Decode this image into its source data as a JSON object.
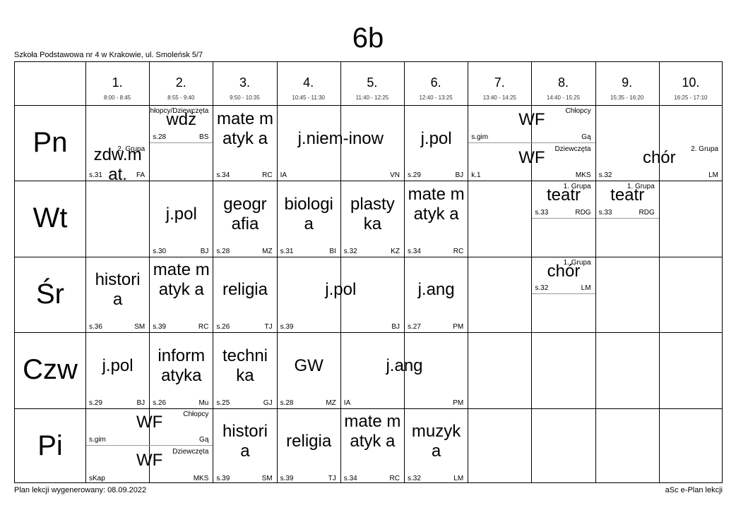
{
  "class_name": "6b",
  "school": "Szkoła Podstawowa nr 4 w Krakowie, ul. Smoleńsk 5/7",
  "footer": {
    "generated": "Plan lekcji wygenerowany: 08.09.2022",
    "software": "aSc e-Plan lekcji"
  },
  "periods": [
    {
      "num": "1.",
      "time": "8:00 - 8:45"
    },
    {
      "num": "2.",
      "time": "8:55 - 9:40"
    },
    {
      "num": "3.",
      "time": "9:50 - 10:35"
    },
    {
      "num": "4.",
      "time": "10:45 - 11:30"
    },
    {
      "num": "5.",
      "time": "11:40 - 12:25"
    },
    {
      "num": "6.",
      "time": "12:40 - 13:25"
    },
    {
      "num": "7.",
      "time": "13:40 - 14:25"
    },
    {
      "num": "8.",
      "time": "14:40 - 15:25"
    },
    {
      "num": "9.",
      "time": "15:35 - 16:20"
    },
    {
      "num": "10.",
      "time": "16:25 - 17:10"
    }
  ],
  "days": [
    "Pn",
    "Wt",
    "Śr",
    "Czw",
    "Pi"
  ],
  "lessons": [
    {
      "day": 0,
      "start": 1,
      "span": 1,
      "half": "bottom",
      "subject": "zdw.m at.",
      "room": "s.31",
      "teacher": "FA",
      "group": "2. Grupa"
    },
    {
      "day": 0,
      "start": 2,
      "span": 1,
      "half": "top",
      "subject": "wdż",
      "room": "s.28",
      "teacher": "BS",
      "group": "Chłopcy/Dziewczęta"
    },
    {
      "day": 0,
      "start": 3,
      "span": 1,
      "half": "full",
      "subject": "mate matyk a",
      "room": "s.34",
      "teacher": "RC",
      "group": ""
    },
    {
      "day": 0,
      "start": 4,
      "span": 2,
      "half": "full",
      "subject": "j.niem-inow",
      "room": "IA",
      "teacher": "VN",
      "group": ""
    },
    {
      "day": 0,
      "start": 6,
      "span": 1,
      "half": "full",
      "subject": "j.pol",
      "room": "s.29",
      "teacher": "BJ",
      "group": ""
    },
    {
      "day": 0,
      "start": 7,
      "span": 2,
      "half": "top",
      "subject": "WF",
      "room": "s.gim",
      "teacher": "Gą",
      "group": "Chłopcy"
    },
    {
      "day": 0,
      "start": 7,
      "span": 2,
      "half": "bottom",
      "subject": "WF",
      "room": "k.1",
      "teacher": "MKS",
      "group": "Dziewczęta"
    },
    {
      "day": 0,
      "start": 9,
      "span": 2,
      "half": "bottom",
      "subject": "chór",
      "room": "s.32",
      "teacher": "LM",
      "group": "2. Grupa"
    },
    {
      "day": 1,
      "start": 2,
      "span": 1,
      "half": "full",
      "subject": "j.pol",
      "room": "s.30",
      "teacher": "BJ",
      "group": ""
    },
    {
      "day": 1,
      "start": 3,
      "span": 1,
      "half": "full",
      "subject": "geogr afia",
      "room": "s.28",
      "teacher": "MZ",
      "group": ""
    },
    {
      "day": 1,
      "start": 4,
      "span": 1,
      "half": "full",
      "subject": "biologi a",
      "room": "s.31",
      "teacher": "BI",
      "group": ""
    },
    {
      "day": 1,
      "start": 5,
      "span": 1,
      "half": "full",
      "subject": "plasty ka",
      "room": "s.32",
      "teacher": "KZ",
      "group": ""
    },
    {
      "day": 1,
      "start": 6,
      "span": 1,
      "half": "full",
      "subject": "mate matyk a",
      "room": "s.34",
      "teacher": "RC",
      "group": ""
    },
    {
      "day": 1,
      "start": 8,
      "span": 1,
      "half": "top",
      "subject": "teatr",
      "room": "s.33",
      "teacher": "RDG",
      "group": "1. Grupa"
    },
    {
      "day": 1,
      "start": 9,
      "span": 1,
      "half": "top",
      "subject": "teatr",
      "room": "s.33",
      "teacher": "RDG",
      "group": "1. Grupa"
    },
    {
      "day": 2,
      "start": 1,
      "span": 1,
      "half": "full",
      "subject": "histori a",
      "room": "s.36",
      "teacher": "SM",
      "group": ""
    },
    {
      "day": 2,
      "start": 2,
      "span": 1,
      "half": "full",
      "subject": "mate matyk a",
      "room": "s.39",
      "teacher": "RC",
      "group": ""
    },
    {
      "day": 2,
      "start": 3,
      "span": 1,
      "half": "full",
      "subject": "religia",
      "room": "s.26",
      "teacher": "TJ",
      "group": ""
    },
    {
      "day": 2,
      "start": 4,
      "span": 2,
      "half": "full",
      "subject": "j.pol",
      "room": "s.39",
      "teacher": "BJ",
      "group": ""
    },
    {
      "day": 2,
      "start": 6,
      "span": 1,
      "half": "full",
      "subject": "j.ang",
      "room": "s.27",
      "teacher": "PM",
      "group": ""
    },
    {
      "day": 2,
      "start": 8,
      "span": 1,
      "half": "top",
      "subject": "chór",
      "room": "s.32",
      "teacher": "LM",
      "group": "1. Grupa"
    },
    {
      "day": 3,
      "start": 1,
      "span": 1,
      "half": "full",
      "subject": "j.pol",
      "room": "s.29",
      "teacher": "BJ",
      "group": ""
    },
    {
      "day": 3,
      "start": 2,
      "span": 1,
      "half": "full",
      "subject": "inform atyka",
      "room": "s.26",
      "teacher": "Mu",
      "group": ""
    },
    {
      "day": 3,
      "start": 3,
      "span": 1,
      "half": "full",
      "subject": "techni ka",
      "room": "s.25",
      "teacher": "GJ",
      "group": ""
    },
    {
      "day": 3,
      "start": 4,
      "span": 1,
      "half": "full",
      "subject": "GW",
      "room": "s.28",
      "teacher": "MZ",
      "group": ""
    },
    {
      "day": 3,
      "start": 5,
      "span": 2,
      "half": "full",
      "subject": "j.ang",
      "room": "IA",
      "teacher": "PM",
      "group": ""
    },
    {
      "day": 4,
      "start": 1,
      "span": 2,
      "half": "top",
      "subject": "WF",
      "room": "s.gim",
      "teacher": "Gą",
      "group": "Chłopcy"
    },
    {
      "day": 4,
      "start": 1,
      "span": 2,
      "half": "bottom",
      "subject": "WF",
      "room": "sKap",
      "teacher": "MKS",
      "group": "Dziewczęta"
    },
    {
      "day": 4,
      "start": 3,
      "span": 1,
      "half": "full",
      "subject": "histori a",
      "room": "s.39",
      "teacher": "SM",
      "group": ""
    },
    {
      "day": 4,
      "start": 4,
      "span": 1,
      "half": "full",
      "subject": "religia",
      "room": "s.39",
      "teacher": "TJ",
      "group": ""
    },
    {
      "day": 4,
      "start": 5,
      "span": 1,
      "half": "full",
      "subject": "mate matyk a",
      "room": "s.34",
      "teacher": "RC",
      "group": ""
    },
    {
      "day": 4,
      "start": 6,
      "span": 1,
      "half": "full",
      "subject": "muzyk a",
      "room": "s.32",
      "teacher": "LM",
      "group": ""
    }
  ]
}
